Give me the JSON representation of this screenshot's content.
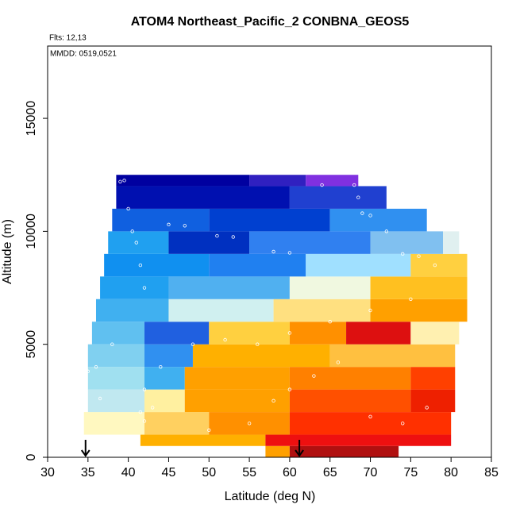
{
  "chart_data": {
    "type": "curtain",
    "title": "ATOM4 Northeast_Pacific_2 CONBNA_GEOS5",
    "annotations": [
      "Flts: 12,13",
      "MMDD: 0519,0521"
    ],
    "xlabel": "Latitude (deg N)",
    "ylabel": "Altitude (m)",
    "xlim": [
      30,
      85
    ],
    "xticks": [
      30,
      35,
      40,
      45,
      50,
      55,
      60,
      65,
      70,
      75,
      80,
      85
    ],
    "ylim": [
      0,
      18200
    ],
    "yticks": [
      0,
      5000,
      10000,
      15000
    ],
    "layers": [
      {
        "alt": [
          0,
          500
        ],
        "segments": [
          [
            57,
            60,
            "#ffa000"
          ],
          [
            60,
            73.5,
            "#b01010"
          ]
        ]
      },
      {
        "alt": [
          500,
          1000
        ],
        "segments": [
          [
            41.5,
            57,
            "#ffb000"
          ],
          [
            57,
            80,
            "#ee1010"
          ]
        ]
      },
      {
        "alt": [
          1000,
          2000
        ],
        "segments": [
          [
            34.5,
            42,
            "#fff8c0"
          ],
          [
            42,
            50,
            "#ffd060"
          ],
          [
            50,
            60,
            "#ff9000"
          ],
          [
            60,
            80,
            "#ff3000"
          ]
        ]
      },
      {
        "alt": [
          2000,
          3000
        ],
        "segments": [
          [
            35,
            42,
            "#c0e8f0"
          ],
          [
            42,
            47,
            "#fff0a0"
          ],
          [
            47,
            60,
            "#ffa000"
          ],
          [
            60,
            75,
            "#ff5000"
          ],
          [
            75,
            80.5,
            "#ee2000"
          ]
        ]
      },
      {
        "alt": [
          3000,
          4000
        ],
        "segments": [
          [
            35,
            42,
            "#a0e0f0"
          ],
          [
            42,
            47,
            "#40b0f0"
          ],
          [
            47,
            60,
            "#ffa000"
          ],
          [
            60,
            75,
            "#ff8000"
          ],
          [
            75,
            80.5,
            "#ff4000"
          ]
        ]
      },
      {
        "alt": [
          4000,
          5000
        ],
        "segments": [
          [
            35,
            42,
            "#80d0f0"
          ],
          [
            42,
            48,
            "#3090f0"
          ],
          [
            48,
            65,
            "#ffb000"
          ],
          [
            65,
            80.5,
            "#ffc040"
          ]
        ]
      },
      {
        "alt": [
          5000,
          6000
        ],
        "segments": [
          [
            35.5,
            42,
            "#60c0f0"
          ],
          [
            42,
            50,
            "#2060e0"
          ],
          [
            50,
            60,
            "#ffd040"
          ],
          [
            60,
            67,
            "#ff9000"
          ],
          [
            67,
            75,
            "#dd1010"
          ],
          [
            75,
            81,
            "#fff0b0"
          ]
        ]
      },
      {
        "alt": [
          6000,
          7000
        ],
        "segments": [
          [
            36,
            45,
            "#40b0f0"
          ],
          [
            45,
            58,
            "#d0f0f0"
          ],
          [
            58,
            70,
            "#ffe080"
          ],
          [
            70,
            82,
            "#ffa000"
          ]
        ]
      },
      {
        "alt": [
          7000,
          8000
        ],
        "segments": [
          [
            36.5,
            45,
            "#20a0f0"
          ],
          [
            45,
            60,
            "#50b0f0"
          ],
          [
            60,
            70,
            "#f0f8e0"
          ],
          [
            70,
            82,
            "#ffc020"
          ]
        ]
      },
      {
        "alt": [
          8000,
          9000
        ],
        "segments": [
          [
            37,
            50,
            "#1090f0"
          ],
          [
            50,
            62,
            "#2080f0"
          ],
          [
            62,
            75,
            "#a0e0ff"
          ],
          [
            75,
            82,
            "#ffd040"
          ]
        ]
      },
      {
        "alt": [
          9000,
          10000
        ],
        "segments": [
          [
            37.5,
            45,
            "#20a0f0"
          ],
          [
            45,
            55,
            "#0030c0"
          ],
          [
            55,
            70,
            "#3080f0"
          ],
          [
            70,
            79,
            "#80c0f0"
          ],
          [
            79,
            81,
            "#e0f0f0"
          ]
        ]
      },
      {
        "alt": [
          10000,
          11000
        ],
        "segments": [
          [
            38,
            50,
            "#1060e0"
          ],
          [
            50,
            65,
            "#0040d0"
          ],
          [
            65,
            77,
            "#3090f0"
          ]
        ]
      },
      {
        "alt": [
          11000,
          12000
        ],
        "segments": [
          [
            38.5,
            60,
            "#0010b0"
          ],
          [
            60,
            72,
            "#2040d0"
          ]
        ]
      },
      {
        "alt": [
          12000,
          12500
        ],
        "segments": [
          [
            38.5,
            55,
            "#0000a0"
          ],
          [
            55,
            62,
            "#3020c0"
          ],
          [
            62,
            68.5,
            "#8030e0"
          ]
        ]
      }
    ],
    "track": {
      "color": "#ffffff",
      "lat": [
        39,
        39.5,
        40,
        40.5,
        41,
        41.5,
        42,
        45,
        47,
        51,
        53,
        58,
        60,
        64,
        68,
        68.5,
        69,
        70,
        72,
        74,
        76,
        78,
        75,
        70,
        65,
        60,
        56,
        52,
        48,
        44,
        42,
        41.5,
        38,
        36,
        35,
        36.5,
        42,
        43,
        50,
        55,
        58,
        60,
        63,
        66,
        70,
        74,
        77
      ],
      "alt": [
        12200,
        12250,
        11000,
        10000,
        9500,
        8500,
        7500,
        10300,
        10250,
        9800,
        9750,
        9100,
        9050,
        12050,
        12050,
        11500,
        10800,
        10700,
        10000,
        9000,
        8900,
        8500,
        7000,
        6500,
        6000,
        5500,
        5000,
        5200,
        5000,
        4000,
        3000,
        2000,
        5000,
        4000,
        3800,
        2600,
        1600,
        2200,
        1200,
        1500,
        2500,
        3000,
        3600,
        4200,
        1800,
        1500,
        2200
      ]
    },
    "arrows": {
      "color": "#000000",
      "lat": [
        34.7,
        61.2
      ]
    }
  }
}
